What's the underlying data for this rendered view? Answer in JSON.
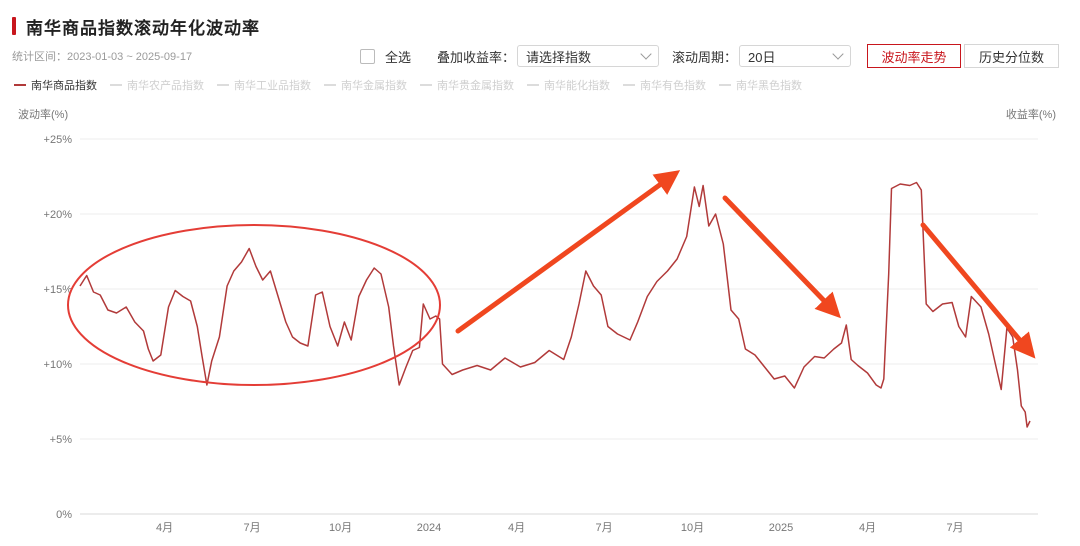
{
  "header": {
    "title": "南华商品指数滚动年化波动率",
    "stat_range": "统计区间：2023-01-03 ~ 2025-09-17"
  },
  "controls": {
    "select_all_label": "全选",
    "overlay_label": "叠加收益率：",
    "overlay_value": "请选择指数",
    "period_label": "滚动周期：",
    "period_value": "20日",
    "btn_trend": "波动率走势",
    "btn_percentile": "历史分位数"
  },
  "legend": [
    {
      "name": "南华商品指数",
      "active": true
    },
    {
      "name": "南华农产品指数",
      "active": false
    },
    {
      "name": "南华工业品指数",
      "active": false
    },
    {
      "name": "南华金属指数",
      "active": false
    },
    {
      "name": "南华贵金属指数",
      "active": false
    },
    {
      "name": "南华能化指数",
      "active": false
    },
    {
      "name": "南华有色指数",
      "active": false
    },
    {
      "name": "南华黑色指数",
      "active": false
    }
  ],
  "colors": {
    "accent": "#c8161d",
    "series": "#b13a3a",
    "annotation": "#f0471f"
  },
  "chart_data": {
    "type": "line",
    "ylabel": "波动率(%)",
    "y2label": "收益率(%)",
    "ylim": [
      0,
      25
    ],
    "yticks": [
      "0%",
      "+5%",
      "+10%",
      "+15%",
      "+20%",
      "+25%"
    ],
    "xlim": [
      "2023-01-03",
      "2025-09-17"
    ],
    "xticks": [
      {
        "date": "2023-04-01",
        "label": "4月"
      },
      {
        "date": "2023-07-01",
        "label": "7月"
      },
      {
        "date": "2023-10-01",
        "label": "10月"
      },
      {
        "date": "2024-01-01",
        "label": "2024"
      },
      {
        "date": "2024-04-01",
        "label": "4月"
      },
      {
        "date": "2024-07-01",
        "label": "7月"
      },
      {
        "date": "2024-10-01",
        "label": "10月"
      },
      {
        "date": "2025-01-01",
        "label": "2025"
      },
      {
        "date": "2025-04-01",
        "label": "4月"
      },
      {
        "date": "2025-07-01",
        "label": "7月"
      }
    ],
    "grid": true,
    "series": [
      {
        "name": "南华商品指数",
        "points": [
          [
            "2023-01-03",
            15.2
          ],
          [
            "2023-01-10",
            15.9
          ],
          [
            "2023-01-17",
            14.8
          ],
          [
            "2023-01-24",
            14.6
          ],
          [
            "2023-02-01",
            13.6
          ],
          [
            "2023-02-10",
            13.4
          ],
          [
            "2023-02-20",
            13.8
          ],
          [
            "2023-03-01",
            12.8
          ],
          [
            "2023-03-10",
            12.2
          ],
          [
            "2023-03-15",
            11.0
          ],
          [
            "2023-03-20",
            10.2
          ],
          [
            "2023-03-28",
            10.6
          ],
          [
            "2023-04-05",
            13.8
          ],
          [
            "2023-04-12",
            14.9
          ],
          [
            "2023-04-20",
            14.5
          ],
          [
            "2023-04-28",
            14.2
          ],
          [
            "2023-05-05",
            12.5
          ],
          [
            "2023-05-10",
            10.5
          ],
          [
            "2023-05-15",
            8.6
          ],
          [
            "2023-05-20",
            10.2
          ],
          [
            "2023-05-28",
            11.8
          ],
          [
            "2023-06-05",
            15.2
          ],
          [
            "2023-06-12",
            16.2
          ],
          [
            "2023-06-20",
            16.8
          ],
          [
            "2023-06-28",
            17.7
          ],
          [
            "2023-07-05",
            16.5
          ],
          [
            "2023-07-12",
            15.6
          ],
          [
            "2023-07-20",
            16.2
          ],
          [
            "2023-07-28",
            14.5
          ],
          [
            "2023-08-05",
            12.8
          ],
          [
            "2023-08-12",
            11.8
          ],
          [
            "2023-08-20",
            11.4
          ],
          [
            "2023-08-28",
            11.2
          ],
          [
            "2023-09-05",
            14.6
          ],
          [
            "2023-09-12",
            14.8
          ],
          [
            "2023-09-20",
            12.5
          ],
          [
            "2023-09-28",
            11.2
          ],
          [
            "2023-10-05",
            12.8
          ],
          [
            "2023-10-12",
            11.6
          ],
          [
            "2023-10-20",
            14.5
          ],
          [
            "2023-10-28",
            15.6
          ],
          [
            "2023-11-05",
            16.4
          ],
          [
            "2023-11-12",
            16.0
          ],
          [
            "2023-11-20",
            13.8
          ],
          [
            "2023-11-25",
            11.2
          ],
          [
            "2023-12-01",
            8.6
          ],
          [
            "2023-12-08",
            9.8
          ],
          [
            "2023-12-15",
            10.9
          ],
          [
            "2023-12-22",
            11.1
          ],
          [
            "2023-12-26",
            14.0
          ],
          [
            "2024-01-02",
            13.0
          ],
          [
            "2024-01-08",
            13.2
          ],
          [
            "2024-01-12",
            13.0
          ],
          [
            "2024-01-15",
            10.0
          ],
          [
            "2024-01-25",
            9.3
          ],
          [
            "2024-02-05",
            9.6
          ],
          [
            "2024-02-20",
            9.9
          ],
          [
            "2024-03-05",
            9.6
          ],
          [
            "2024-03-20",
            10.4
          ],
          [
            "2024-04-05",
            9.8
          ],
          [
            "2024-04-20",
            10.1
          ],
          [
            "2024-05-05",
            10.9
          ],
          [
            "2024-05-20",
            10.3
          ],
          [
            "2024-05-28",
            11.8
          ],
          [
            "2024-06-05",
            14.0
          ],
          [
            "2024-06-12",
            16.2
          ],
          [
            "2024-06-20",
            15.2
          ],
          [
            "2024-06-28",
            14.6
          ],
          [
            "2024-07-05",
            12.5
          ],
          [
            "2024-07-15",
            12.0
          ],
          [
            "2024-07-28",
            11.6
          ],
          [
            "2024-08-05",
            12.8
          ],
          [
            "2024-08-15",
            14.5
          ],
          [
            "2024-08-25",
            15.5
          ],
          [
            "2024-09-05",
            16.2
          ],
          [
            "2024-09-15",
            17.0
          ],
          [
            "2024-09-25",
            18.5
          ],
          [
            "2024-10-03",
            21.8
          ],
          [
            "2024-10-08",
            20.5
          ],
          [
            "2024-10-12",
            21.9
          ],
          [
            "2024-10-18",
            19.2
          ],
          [
            "2024-10-25",
            20.0
          ],
          [
            "2024-11-02",
            18.0
          ],
          [
            "2024-11-10",
            13.6
          ],
          [
            "2024-11-18",
            13.0
          ],
          [
            "2024-11-25",
            11.0
          ],
          [
            "2024-12-05",
            10.6
          ],
          [
            "2024-12-15",
            9.8
          ],
          [
            "2024-12-25",
            9.0
          ],
          [
            "2025-01-05",
            9.2
          ],
          [
            "2025-01-15",
            8.4
          ],
          [
            "2025-01-25",
            9.8
          ],
          [
            "2025-02-05",
            10.5
          ],
          [
            "2025-02-15",
            10.4
          ],
          [
            "2025-02-25",
            11.0
          ],
          [
            "2025-03-05",
            11.4
          ],
          [
            "2025-03-10",
            12.6
          ],
          [
            "2025-03-15",
            10.3
          ],
          [
            "2025-03-22",
            9.9
          ],
          [
            "2025-04-01",
            9.4
          ],
          [
            "2025-04-10",
            8.6
          ],
          [
            "2025-04-15",
            8.4
          ],
          [
            "2025-04-18",
            9.0
          ],
          [
            "2025-04-23",
            16.0
          ],
          [
            "2025-04-26",
            21.7
          ],
          [
            "2025-05-05",
            22.0
          ],
          [
            "2025-05-15",
            21.9
          ],
          [
            "2025-05-22",
            22.1
          ],
          [
            "2025-05-27",
            21.6
          ],
          [
            "2025-06-01",
            14.0
          ],
          [
            "2025-06-08",
            13.5
          ],
          [
            "2025-06-18",
            14.0
          ],
          [
            "2025-06-28",
            14.1
          ],
          [
            "2025-07-05",
            12.5
          ],
          [
            "2025-07-12",
            11.8
          ],
          [
            "2025-07-18",
            14.5
          ],
          [
            "2025-07-28",
            13.8
          ],
          [
            "2025-08-05",
            12.0
          ],
          [
            "2025-08-12",
            10.0
          ],
          [
            "2025-08-18",
            8.3
          ],
          [
            "2025-08-24",
            12.4
          ],
          [
            "2025-08-30",
            11.8
          ],
          [
            "2025-09-04",
            9.6
          ],
          [
            "2025-09-08",
            7.2
          ],
          [
            "2025-09-12",
            6.8
          ],
          [
            "2025-09-14",
            5.8
          ],
          [
            "2025-09-17",
            6.2
          ]
        ]
      }
    ]
  }
}
